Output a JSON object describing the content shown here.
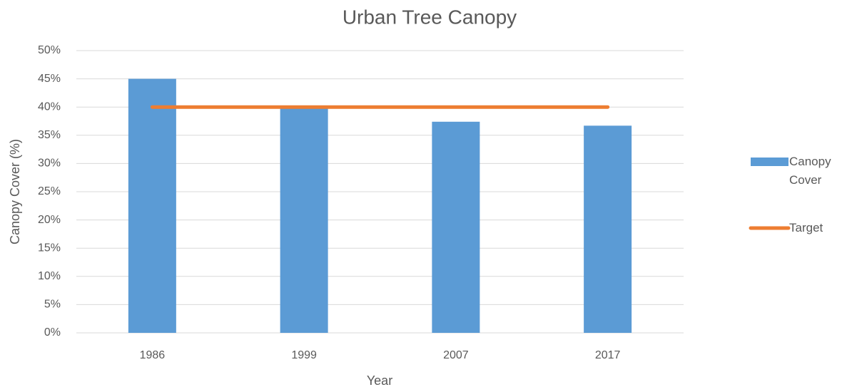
{
  "chart_data": {
    "type": "bar",
    "title": "Urban Tree Canopy",
    "x_label": "Year",
    "y_label": "Canopy Cover (%)",
    "categories": [
      "1986",
      "1999",
      "2007",
      "2017"
    ],
    "series": [
      {
        "name": "Canopy Cover",
        "type": "bar",
        "color": "#5b9bd5",
        "values": [
          45,
          40.2,
          37.4,
          36.7
        ]
      },
      {
        "name": "Target",
        "type": "line",
        "color": "#ed7d31",
        "values": [
          40,
          40,
          40,
          40
        ]
      }
    ],
    "ylim": [
      0,
      50
    ],
    "yticks": [
      {
        "value": 0,
        "label": "0%"
      },
      {
        "value": 5,
        "label": "5%"
      },
      {
        "value": 10,
        "label": "10%"
      },
      {
        "value": 15,
        "label": "15%"
      },
      {
        "value": 20,
        "label": "20%"
      },
      {
        "value": 25,
        "label": "25%"
      },
      {
        "value": 30,
        "label": "30%"
      },
      {
        "value": 35,
        "label": "35%"
      },
      {
        "value": 40,
        "label": "40%"
      },
      {
        "value": 45,
        "label": "45%"
      },
      {
        "value": 50,
        "label": "50%"
      }
    ],
    "grid": true,
    "legend": "right"
  }
}
